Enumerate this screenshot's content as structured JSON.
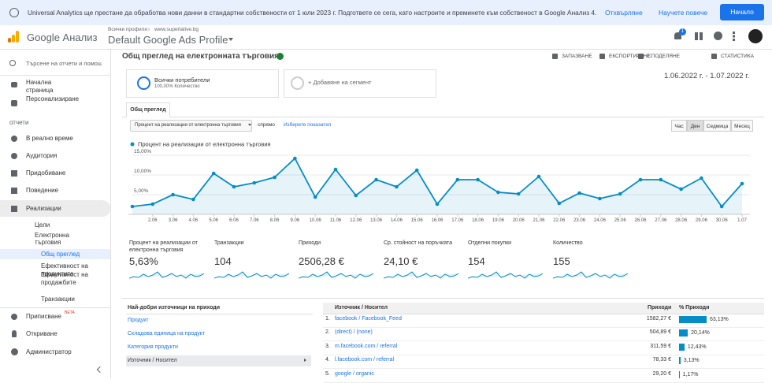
{
  "banner": {
    "message": "Universal Analytics ще престане да обработва нови данни в стандартни собствености от 1 юли 2023 г. Подгответе се сега, като настроите и преминете към собственост в Google Анализ 4.",
    "dismiss": "Отхвърляне",
    "learn_more": "Научете повече",
    "start": "Начало"
  },
  "header": {
    "product": "Google Анализ",
    "breadcrumb": [
      "Всички профили",
      "www.superlative.bg"
    ],
    "profile": "Default Google Ads Profile",
    "notifications": "1"
  },
  "sidebar": {
    "search": "Търсене на отчети и помощ",
    "nav": [
      "Начална страница",
      "Персонализиране"
    ],
    "section": "отчети",
    "reports": [
      "В реално време",
      "Аудитория",
      "Придобиване",
      "Поведение",
      "Реализации"
    ],
    "conversions": [
      "Цели",
      "Електронна търговия"
    ],
    "ecommerce": [
      "Общ преглед",
      "Ефективност на продуктите",
      "Ефективност на продажбите",
      "Транзакции"
    ],
    "bottom": [
      "Приписване",
      "Откриване",
      "Администратор"
    ],
    "beta": "BETA"
  },
  "report": {
    "title": "Общ преглед на електронната търговия",
    "actions": [
      "ЗАПАЗВАНЕ",
      "ЕКСПОРТИРАНЕ",
      "СПОДЕЛЯНЕ",
      "СТАТИСТИКА"
    ],
    "segment": {
      "name": "Всички потребители",
      "detail": "100,00% Количество",
      "add": "+ Добавяне на сегмент"
    },
    "date_range": "1.06.2022 г. - 1.07.2022 г.",
    "tab": "Общ преглед",
    "metric_select": "Процент на реализации от електронна търговия",
    "versus": "спрямо",
    "choose_metric": "Изберете показател",
    "granularity": [
      "Час",
      "Ден",
      "Седмица",
      "Месец"
    ]
  },
  "chart_data": {
    "type": "line",
    "categories": [
      null,
      "2.06",
      "3.06",
      "4.06",
      "5.06",
      "6.06",
      "7.06",
      "8.06",
      "9.06",
      "10.06",
      "11.06",
      "12.06",
      "13.06",
      "14.06",
      "15.06",
      "16.06",
      "17.06",
      "18.06",
      "19.06",
      "20.06",
      "21.06",
      "22.06",
      "23.06",
      "24.06",
      "25.06",
      "26.06",
      "27.06",
      "28.06",
      "29.06",
      "30.06",
      "1.07"
    ],
    "series": [
      {
        "name": "Процент на реализации от електронна търговия",
        "color": "#058dc7",
        "values": [
          2.0,
          2.6,
          5.0,
          3.8,
          10.4,
          7.0,
          8.0,
          9.4,
          14.2,
          4.4,
          11.4,
          4.8,
          8.8,
          7.0,
          11.2,
          2.6,
          8.8,
          8.8,
          5.6,
          5.2,
          9.6,
          2.8,
          5.4,
          4.0,
          5.2,
          8.8,
          8.8,
          6.4,
          9.2,
          2.0,
          7.8
        ]
      }
    ],
    "ylim": [
      0,
      16
    ],
    "yticks": [
      {
        "value": 5,
        "label": "5,00%"
      },
      {
        "value": 10,
        "label": "10,00%"
      },
      {
        "value": 15,
        "label": "15,00%"
      }
    ],
    "grid": true
  },
  "metrics": [
    {
      "label": "Процент на реализации от електронна търговия",
      "value": "5,63%"
    },
    {
      "label": "Транзакции",
      "value": "104"
    },
    {
      "label": "Приходи",
      "value": "2506,28 €"
    },
    {
      "label": "Ср. стойност на поръчката",
      "value": "24,10 €"
    },
    {
      "label": "Отделни покупки",
      "value": "154"
    },
    {
      "label": "Количество",
      "value": "155"
    }
  ],
  "sources_panel": {
    "title": "Най-добри източници на приходи",
    "items": [
      "Продукт",
      "Складова единица на продукт",
      "Категория продукти",
      "Източник / Носител"
    ]
  },
  "table": {
    "headers": [
      "Източник / Носител",
      "Приходи",
      "% Приходи"
    ],
    "rows": [
      {
        "rank": "1.",
        "source": "facebook / Facebook_Feed",
        "revenue": "1582,27 €",
        "share": 63.13,
        "share_label": "63,13%"
      },
      {
        "rank": "2.",
        "source": "(direct) / (none)",
        "revenue": "504,89 €",
        "share": 20.14,
        "share_label": "20,14%"
      },
      {
        "rank": "3.",
        "source": "m.facebook.com / referral",
        "revenue": "311,59 €",
        "share": 12.43,
        "share_label": "12,43%"
      },
      {
        "rank": "4.",
        "source": "l.facebook.com / referral",
        "revenue": "78,33 €",
        "share": 3.13,
        "share_label": "3,13%"
      },
      {
        "rank": "5.",
        "source": "google / organic",
        "revenue": "29,20 €",
        "share": 1.17,
        "share_label": "1,17%"
      }
    ]
  }
}
